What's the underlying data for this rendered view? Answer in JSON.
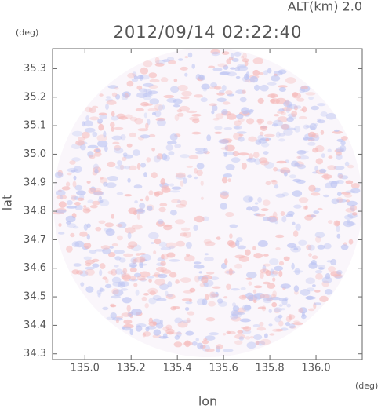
{
  "chart_data": {
    "type": "radar-image",
    "title": "2012/09/14 02:22:40",
    "annotation": "ALT(km) 2.0",
    "xlabel": "lon",
    "ylabel": "lat",
    "x_unit": "(deg)",
    "y_unit": "(deg)",
    "xlim": [
      134.86,
      136.2
    ],
    "ylim": [
      34.28,
      35.37
    ],
    "xticks": [
      {
        "value": 135.0,
        "label": "135.0"
      },
      135.2,
      135.4,
      135.6,
      135.8,
      {
        "value": 136.0,
        "label": "136.0"
      }
    ],
    "yticks": [
      34.3,
      34.4,
      34.5,
      34.6,
      34.7,
      34.8,
      34.9,
      {
        "value": 35.0,
        "label": "35.0"
      },
      35.1,
      35.2,
      35.3
    ],
    "grid": false
  }
}
